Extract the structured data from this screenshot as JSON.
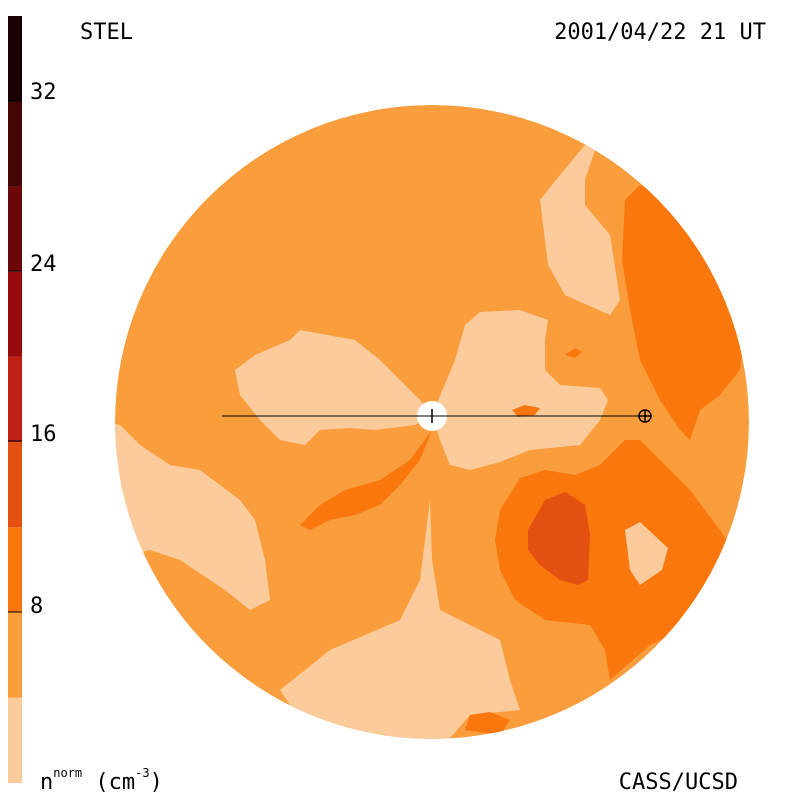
{
  "header": {
    "observatory": "STEL",
    "timestamp": "2001/04/22 21 UT"
  },
  "footer": {
    "credit": "CASS/UCSD",
    "unit_base": "n",
    "unit_sup": "norm",
    "unit_suffix": "(cm",
    "unit_exp": "-3",
    "unit_close": ")"
  },
  "colorbar": {
    "ticks": [
      "32",
      "24",
      "16",
      "8"
    ],
    "tick_values": [
      32,
      24,
      16,
      8
    ],
    "range": [
      0,
      36
    ],
    "levels": [
      {
        "from": 0,
        "to": 4,
        "color": "#fbcb9b"
      },
      {
        "from": 4,
        "to": 8,
        "color": "#f99d3d"
      },
      {
        "from": 8,
        "to": 12,
        "color": "#fa770d"
      },
      {
        "from": 12,
        "to": 16,
        "color": "#e45010"
      },
      {
        "from": 16,
        "to": 20,
        "color": "#c01f14"
      },
      {
        "from": 20,
        "to": 24,
        "color": "#960b0b"
      },
      {
        "from": 24,
        "to": 28,
        "color": "#6c0707"
      },
      {
        "from": 28,
        "to": 32,
        "color": "#430404"
      },
      {
        "from": 32,
        "to": 36,
        "color": "#1a0202"
      }
    ]
  },
  "colors": {
    "level_1": "#fbcb9b",
    "level_2": "#f99d3d",
    "level_3": "#fa770d",
    "level_4": "#e45010",
    "sun": "#ffffff",
    "line": "#000000"
  }
}
